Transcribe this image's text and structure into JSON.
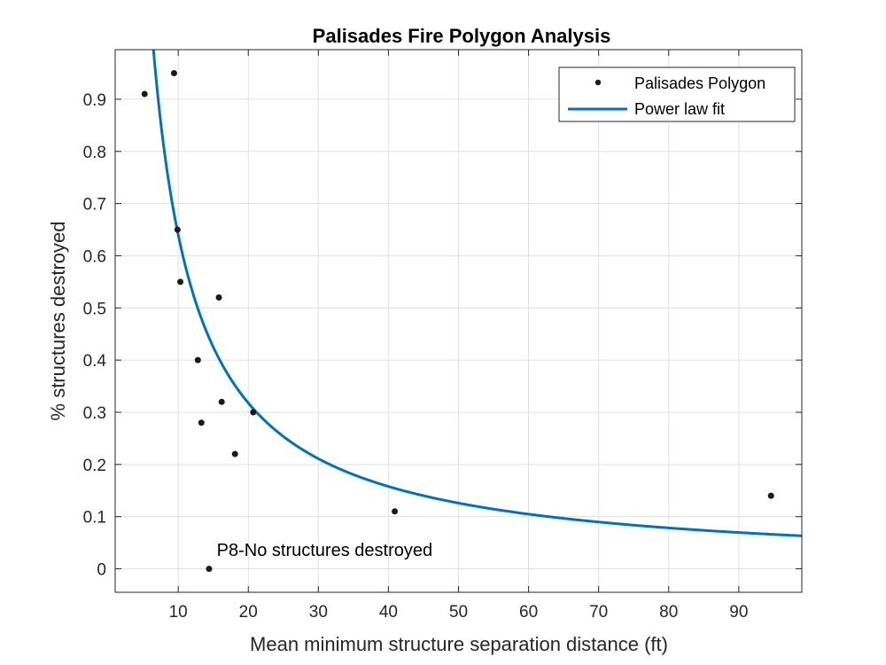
{
  "chart_data": {
    "type": "scatter",
    "title": "Palisades Fire Polygon Analysis",
    "xlabel": "Mean minimum structure separation distance (ft)",
    "ylabel": "% structures destroyed",
    "xlim": [
      1,
      99
    ],
    "ylim": [
      -0.045,
      0.995
    ],
    "xticks": [
      10,
      20,
      30,
      40,
      50,
      60,
      70,
      80,
      90
    ],
    "yticks": [
      0,
      0.1,
      0.2,
      0.3,
      0.4,
      0.5,
      0.6,
      0.7,
      0.8,
      0.9
    ],
    "grid": true,
    "legend_location": "top-right",
    "series": [
      {
        "name": "Palisades Polygon",
        "type": "scatter",
        "color": "#1a1a1a",
        "x": [
          5.2,
          9.4,
          9.9,
          10.3,
          12.8,
          13.3,
          14.4,
          15.8,
          16.2,
          18.1,
          20.7,
          40.9,
          94.6
        ],
        "y": [
          0.91,
          0.95,
          0.65,
          0.55,
          0.4,
          0.28,
          0.0,
          0.52,
          0.32,
          0.22,
          0.3,
          0.11,
          0.14
        ]
      },
      {
        "name": "Power law fit",
        "type": "line",
        "color": "#0072bd",
        "model": "y = a * x^b",
        "a": 6.55,
        "b": -1.01,
        "x_range": [
          5.5,
          99
        ]
      }
    ],
    "annotations": [
      {
        "text": "P8-No structures destroyed",
        "x": 15.5,
        "y": 0.025
      }
    ]
  }
}
